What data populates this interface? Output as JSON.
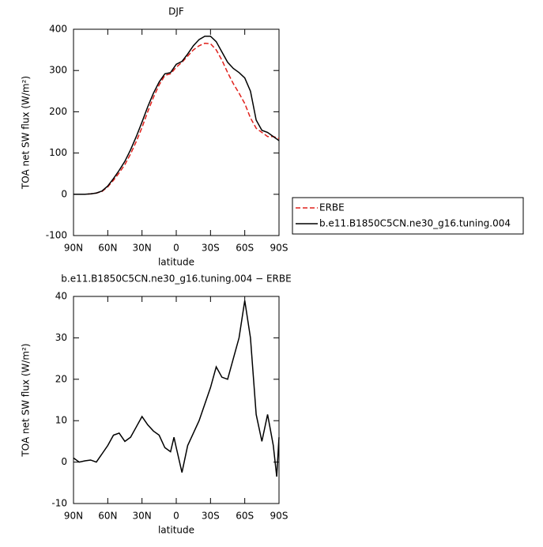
{
  "chart_data": [
    {
      "type": "line",
      "title": "DJF",
      "xlabel": "latitude",
      "ylabel": "TOA net SW flux (W/m²)",
      "x": [
        90,
        85,
        80,
        75,
        70,
        65,
        60,
        55,
        50,
        45,
        40,
        35,
        30,
        25,
        20,
        15,
        10,
        5,
        0,
        -5,
        -10,
        -15,
        -20,
        -25,
        -30,
        -35,
        -40,
        -45,
        -50,
        -55,
        -60,
        -65,
        -70,
        -75,
        -80,
        -85,
        -90
      ],
      "series": [
        {
          "name": "ERBE",
          "color": "#e0201b",
          "dash": true,
          "values": [
            0,
            0,
            0,
            1,
            3,
            7,
            18,
            34,
            52,
            72,
            98,
            128,
            162,
            200,
            235,
            265,
            288,
            292,
            308,
            320,
            335,
            350,
            360,
            366,
            365,
            350,
            325,
            295,
            268,
            245,
            220,
            185,
            160,
            150,
            140,
            140,
            135
          ]
        },
        {
          "name": "b.e11.B1850C5CN.ne30_g16.tuning.004",
          "color": "#000000",
          "dash": false,
          "values": [
            0,
            0,
            0,
            1,
            3,
            8,
            20,
            38,
            58,
            80,
            108,
            140,
            175,
            212,
            245,
            272,
            292,
            295,
            315,
            322,
            340,
            360,
            375,
            383,
            383,
            370,
            345,
            320,
            305,
            295,
            282,
            250,
            180,
            155,
            150,
            140,
            130
          ]
        }
      ],
      "xlim": [
        90,
        -90
      ],
      "xticks": [
        {
          "value": 90,
          "label": "90N"
        },
        {
          "value": 60,
          "label": "60N"
        },
        {
          "value": 30,
          "label": "30N"
        },
        0,
        {
          "value": -30,
          "label": "30S"
        },
        {
          "value": -60,
          "label": "60S"
        },
        {
          "value": -90,
          "label": "90S"
        }
      ],
      "ylim": [
        -100,
        400
      ],
      "yticks": [
        -100,
        0,
        100,
        200,
        300,
        400
      ]
    },
    {
      "type": "line",
      "title": "b.e11.B1850C5CN.ne30_g16.tuning.004 − ERBE",
      "xlabel": "latitude",
      "ylabel": "TOA net SW flux (W/m²)",
      "x": [
        90,
        85,
        80,
        75,
        70,
        65,
        60,
        55,
        50,
        45,
        40,
        35,
        30,
        25,
        20,
        15,
        10,
        5,
        2,
        0,
        -5,
        -10,
        -15,
        -20,
        -25,
        -30,
        -35,
        -40,
        -45,
        -50,
        -55,
        -60,
        -65,
        -70,
        -75,
        -80,
        -85,
        -88,
        -90
      ],
      "series": [
        {
          "color": "#000000",
          "dash": false,
          "values": [
            1,
            0,
            0.3,
            0.5,
            0,
            2,
            4,
            6.5,
            7,
            5,
            6,
            8.5,
            11,
            9,
            7.5,
            6.5,
            3.5,
            2.5,
            6,
            3.5,
            -2.5,
            4,
            7,
            10,
            14,
            18,
            23,
            20.5,
            20,
            25,
            30,
            39,
            30,
            11.5,
            5,
            11.5,
            4,
            -3.5,
            6
          ]
        }
      ],
      "xlim": [
        90,
        -90
      ],
      "xticks": [
        {
          "value": 90,
          "label": "90N"
        },
        {
          "value": 60,
          "label": "60N"
        },
        {
          "value": 30,
          "label": "30N"
        },
        0,
        {
          "value": -30,
          "label": "30S"
        },
        {
          "value": -60,
          "label": "60S"
        },
        {
          "value": -90,
          "label": "90S"
        }
      ],
      "ylim": [
        -10,
        40
      ],
      "yticks": [
        -10,
        0,
        10,
        20,
        30,
        40
      ]
    }
  ]
}
